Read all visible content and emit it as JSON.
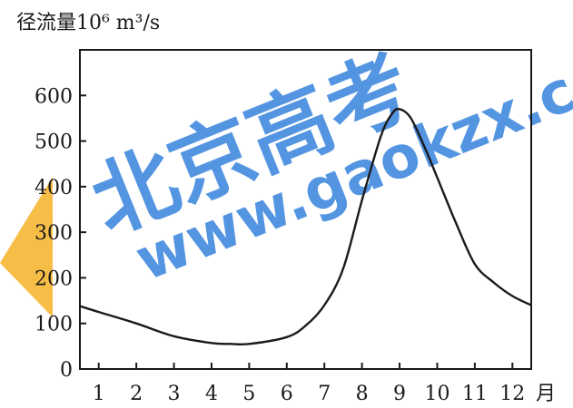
{
  "chart_data": {
    "type": "line",
    "ylabel": "径流量10⁶ m³/s",
    "xlabel": "月",
    "x": [
      1,
      2,
      3,
      4,
      5,
      6,
      7,
      8,
      9,
      10,
      11,
      12
    ],
    "xlim": [
      0.5,
      12.5
    ],
    "ylim": [
      0,
      700
    ],
    "yticks": [
      0,
      100,
      200,
      300,
      400,
      500,
      600
    ],
    "xtick_labels": [
      "1",
      "2",
      "3",
      "4",
      "5",
      "6",
      "7",
      "8",
      "9",
      "10",
      "11",
      "12"
    ],
    "series": [
      {
        "x": [
          0.5,
          1.0,
          2.0,
          3.0,
          4.0,
          4.5,
          5.0,
          6.0,
          6.5,
          7.0,
          7.5,
          8.0,
          8.5,
          8.8,
          9.0,
          9.3,
          9.7,
          10.0,
          10.5,
          11.0,
          11.5,
          12.0,
          12.5
        ],
        "values": [
          138,
          125,
          100,
          72,
          57,
          55,
          55,
          70,
          95,
          140,
          220,
          370,
          510,
          560,
          570,
          550,
          480,
          420,
          320,
          230,
          190,
          160,
          140
        ]
      }
    ],
    "grid": false,
    "color": "#1a1a1a"
  },
  "watermark": {
    "text_cn": "北京高考",
    "text_url": "www.gaokzx.com",
    "color": "#1e73d8",
    "accent": "#f7b733"
  }
}
